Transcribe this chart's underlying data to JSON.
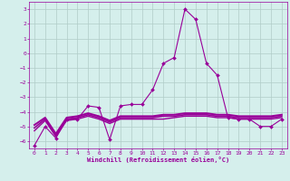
{
  "xlabel": "Windchill (Refroidissement éolien,°C)",
  "x": [
    0,
    1,
    2,
    3,
    4,
    5,
    6,
    7,
    8,
    9,
    10,
    11,
    12,
    13,
    14,
    15,
    16,
    17,
    18,
    19,
    20,
    21,
    22,
    23
  ],
  "line1": [
    -6.3,
    -5.0,
    -5.8,
    -4.5,
    -4.5,
    -3.6,
    -3.7,
    -5.9,
    -3.6,
    -3.5,
    -3.5,
    -2.5,
    -0.7,
    -0.3,
    3.0,
    2.3,
    -0.7,
    -1.5,
    -4.4,
    -4.5,
    -4.5,
    -5.0,
    -5.0,
    -4.5
  ],
  "line2": [
    -5.3,
    -4.6,
    -5.7,
    -4.6,
    -4.5,
    -4.3,
    -4.5,
    -4.8,
    -4.5,
    -4.5,
    -4.5,
    -4.5,
    -4.5,
    -4.4,
    -4.3,
    -4.3,
    -4.3,
    -4.4,
    -4.4,
    -4.5,
    -4.5,
    -4.5,
    -4.5,
    -4.4
  ],
  "line3": [
    -5.1,
    -4.5,
    -5.6,
    -4.5,
    -4.4,
    -4.2,
    -4.4,
    -4.7,
    -4.4,
    -4.4,
    -4.4,
    -4.4,
    -4.3,
    -4.3,
    -4.2,
    -4.2,
    -4.2,
    -4.3,
    -4.3,
    -4.4,
    -4.4,
    -4.4,
    -4.4,
    -4.3
  ],
  "line4": [
    -4.9,
    -4.4,
    -5.5,
    -4.4,
    -4.3,
    -4.1,
    -4.3,
    -4.6,
    -4.3,
    -4.3,
    -4.3,
    -4.3,
    -4.2,
    -4.2,
    -4.1,
    -4.1,
    -4.1,
    -4.2,
    -4.2,
    -4.3,
    -4.3,
    -4.3,
    -4.3,
    -4.2
  ],
  "line_color": "#990099",
  "bg_color": "#d5efec",
  "grid_color": "#b0ccc8",
  "ylim": [
    -6.5,
    3.5
  ],
  "yticks": [
    -6,
    -5,
    -4,
    -3,
    -2,
    -1,
    0,
    1,
    2,
    3
  ],
  "xticks": [
    0,
    1,
    2,
    3,
    4,
    5,
    6,
    7,
    8,
    9,
    10,
    11,
    12,
    13,
    14,
    15,
    16,
    17,
    18,
    19,
    20,
    21,
    22,
    23
  ]
}
